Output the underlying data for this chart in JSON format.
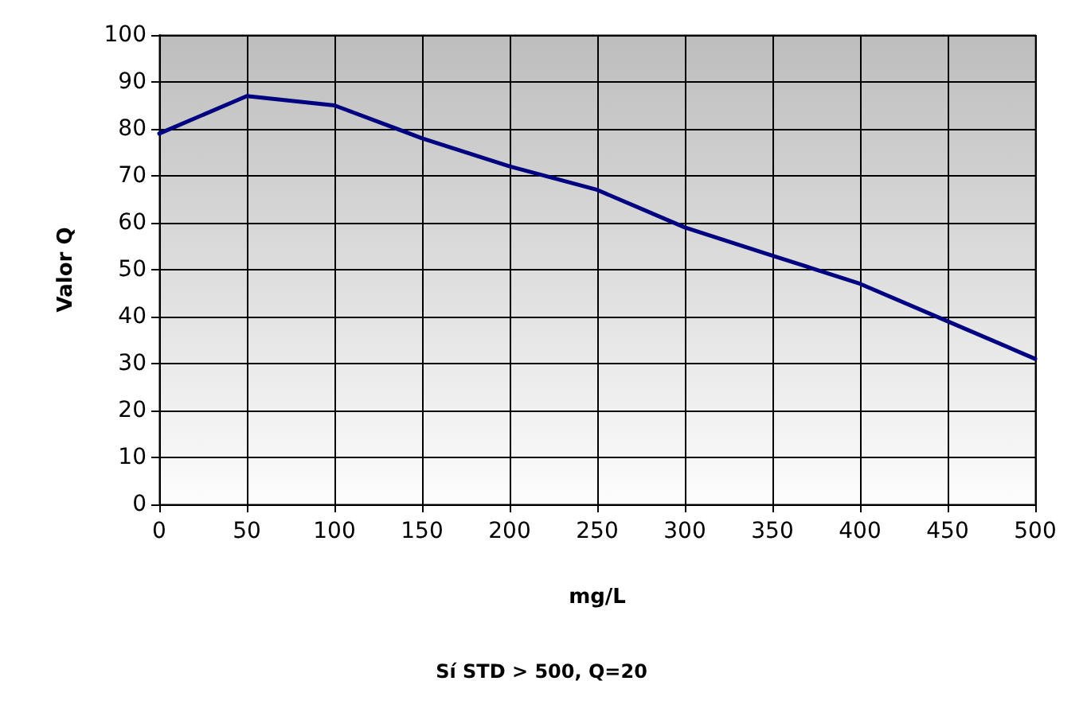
{
  "chart_data": {
    "type": "line",
    "xlabel": "mg/L",
    "ylabel": "Valor Q",
    "x": [
      0,
      50,
      100,
      150,
      200,
      250,
      300,
      350,
      400,
      450,
      500
    ],
    "series": [
      {
        "color": "#000080",
        "values": [
          79,
          87,
          85,
          78,
          72,
          67,
          59,
          53,
          47,
          39,
          31
        ]
      }
    ],
    "xlim": [
      0,
      500
    ],
    "xticks": [
      0,
      50,
      100,
      150,
      200,
      250,
      300,
      350,
      400,
      450,
      500
    ],
    "ylim": [
      0,
      100
    ],
    "yticks": [
      0,
      10,
      20,
      30,
      40,
      50,
      60,
      70,
      80,
      90,
      100
    ],
    "grid": true,
    "marker": "none",
    "line_style": "solid",
    "annotations": [
      "Sí STD > 500, Q=20"
    ]
  }
}
